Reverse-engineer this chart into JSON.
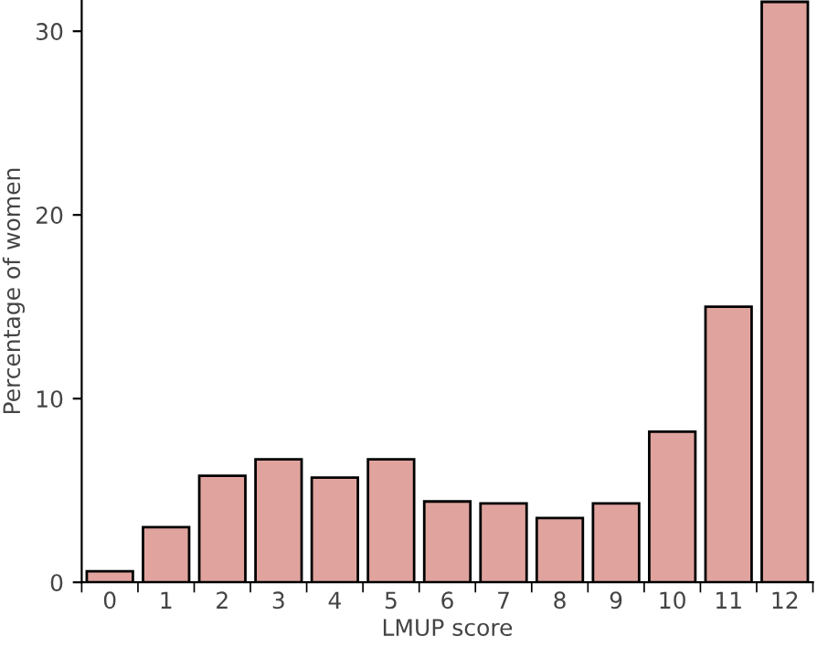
{
  "chart_data": {
    "type": "bar",
    "xlabel": "LMUP score",
    "ylabel": "Percentage of women",
    "categories": [
      "0",
      "1",
      "2",
      "3",
      "4",
      "5",
      "6",
      "7",
      "8",
      "9",
      "10",
      "11",
      "12"
    ],
    "values": [
      0.6,
      3.0,
      5.8,
      6.7,
      5.7,
      6.7,
      4.4,
      4.3,
      3.5,
      4.3,
      8.2,
      15.0,
      31.6
    ],
    "color": "#e0a39e",
    "ylim": [
      0,
      31.7
    ],
    "yticks": [
      0,
      10,
      20,
      30
    ],
    "grid": false,
    "legend": false
  }
}
